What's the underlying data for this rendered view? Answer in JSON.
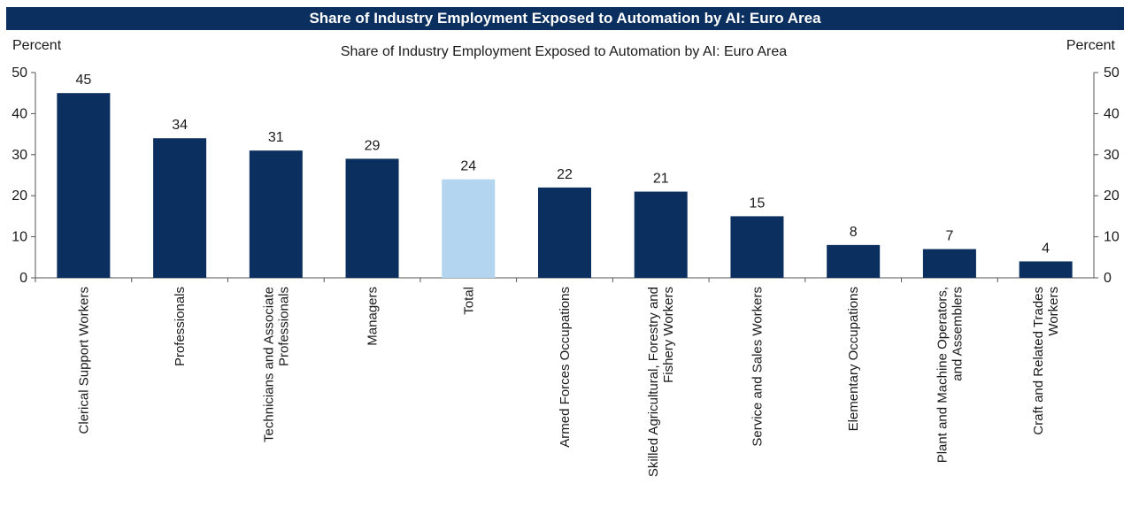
{
  "header": {
    "title": "Share of Industry Employment Exposed to Automation by AI: Euro Area"
  },
  "chart_data": {
    "type": "bar",
    "title": "Share of Industry Employment Exposed to Automation by AI: Euro Area",
    "ylabel_left": "Percent",
    "ylabel_right": "Percent",
    "ylim": [
      0,
      50
    ],
    "yticks": [
      0,
      10,
      20,
      30,
      40,
      50
    ],
    "categories": [
      [
        "Clerical Support Workers"
      ],
      [
        "Professionals"
      ],
      [
        "Technicians and Associate",
        "Professionals"
      ],
      [
        "Managers"
      ],
      [
        "Total"
      ],
      [
        "Armed Forces Occupations"
      ],
      [
        "Skilled Agricultural, Forestry and",
        "Fishery Workers"
      ],
      [
        "Service and Sales Workers"
      ],
      [
        "Elementary Occupations"
      ],
      [
        "Plant and Machine Operators,",
        "and Assemblers"
      ],
      [
        "Craft and Related Trades",
        "Workers"
      ]
    ],
    "values": [
      45,
      34,
      31,
      29,
      24,
      22,
      21,
      15,
      8,
      7,
      4
    ],
    "highlight_index": 4,
    "colors": {
      "bar": "#0b2f5e",
      "highlight": "#b3d5f0",
      "axis": "#555555"
    },
    "grid": false,
    "legend": "none"
  }
}
